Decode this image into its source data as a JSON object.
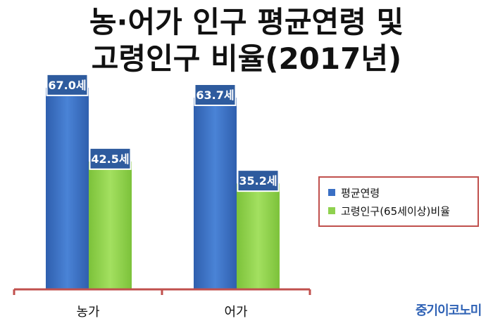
{
  "title": {
    "line1": "농·어가 인구 평균연령 및",
    "line2": "고령인구 비율(2017년)"
  },
  "brand": "중기이코노미",
  "chart_data": {
    "type": "bar",
    "title": "농·어가 인구 평균연령 및 고령인구 비율(2017년)",
    "categories": [
      "농가",
      "어가"
    ],
    "series": [
      {
        "name": "평균연령",
        "values": [
          67.0,
          63.7
        ],
        "labels": [
          "67.0세",
          "63.7세"
        ],
        "color": "#3a6fc4"
      },
      {
        "name": "고령인구(65세이상)비율",
        "values": [
          42.5,
          35.2
        ],
        "labels": [
          "42.5세",
          "35.2세"
        ],
        "color": "#8fd14f"
      }
    ],
    "ylim": [
      0,
      70
    ],
    "grid": false,
    "legend_position": "right",
    "axis_color": "#c0504d",
    "label_bg_color": "#2e5b9e"
  }
}
